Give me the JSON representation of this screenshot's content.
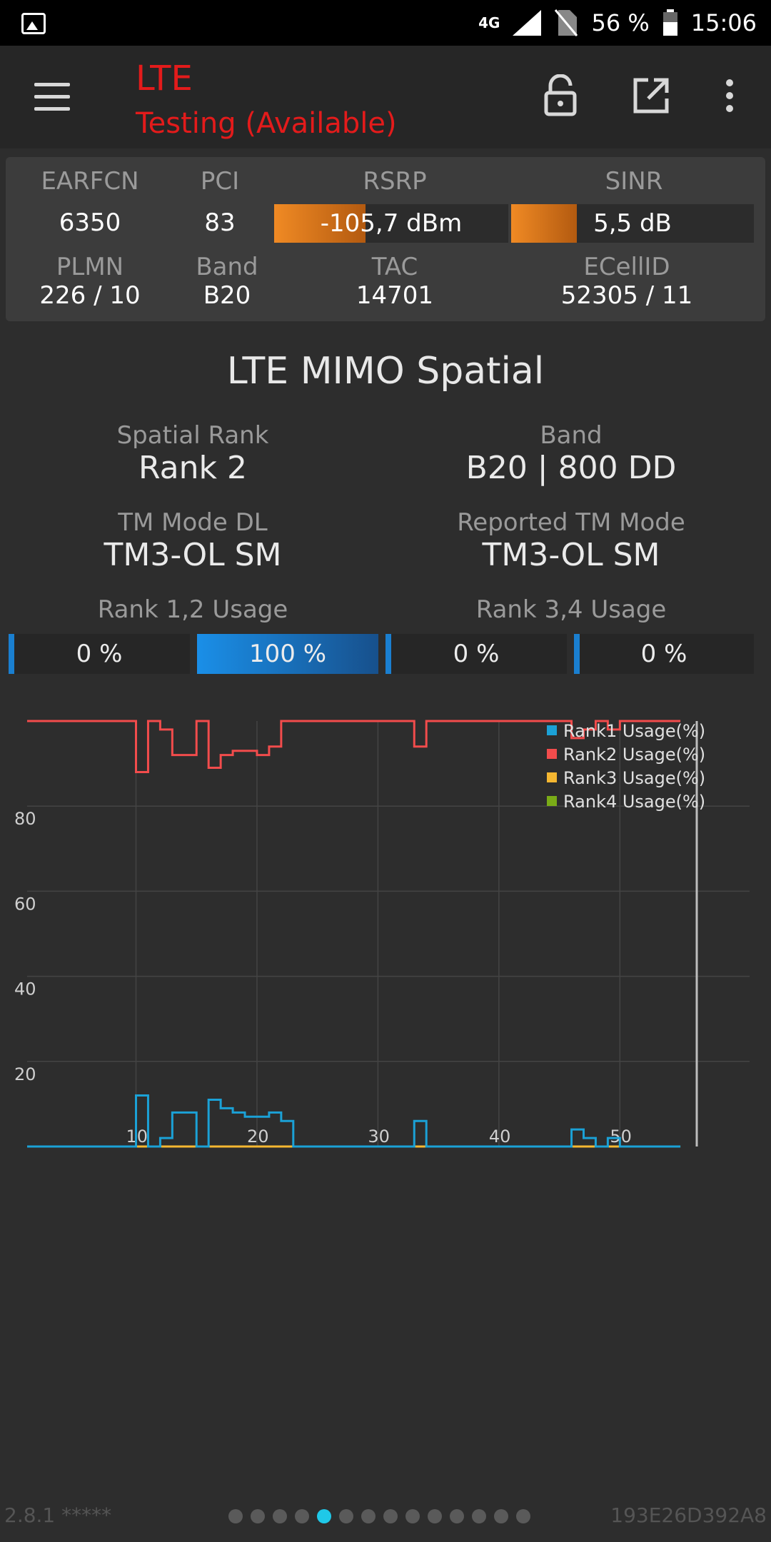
{
  "status_bar": {
    "network": "4G",
    "battery": "56 %",
    "time": "15:06"
  },
  "toolbar": {
    "title": "LTE",
    "subtitle": "Testing (Available)"
  },
  "info": {
    "row1": {
      "earfcn": {
        "label": "EARFCN",
        "value": "6350"
      },
      "pci": {
        "label": "PCI",
        "value": "83"
      },
      "rsrp": {
        "label": "RSRP",
        "value": "-105,7 dBm",
        "level": 0.39
      },
      "sinr": {
        "label": "SINR",
        "value": "5,5 dB",
        "level": 0.27
      }
    },
    "row2": {
      "plmn": {
        "label": "PLMN",
        "value": "226 / 10"
      },
      "band": {
        "label": "Band",
        "value": "B20"
      },
      "tac": {
        "label": "TAC",
        "value": "14701"
      },
      "ecellid": {
        "label": "ECellID",
        "value": "52305 / 11"
      }
    }
  },
  "section_title": "LTE MIMO Spatial",
  "stats": {
    "spatial_rank": {
      "label": "Spatial Rank",
      "value": "Rank 2"
    },
    "band": {
      "label": "Band",
      "value": "B20 | 800 DD"
    },
    "tm_mode_dl": {
      "label": "TM Mode DL",
      "value": "TM3-OL SM"
    },
    "reported_tm": {
      "label": "Reported TM Mode",
      "value": "TM3-OL SM"
    },
    "rank12_label": "Rank 1,2 Usage",
    "rank34_label": "Rank 3,4 Usage"
  },
  "usage": [
    {
      "text": "0 %",
      "value": 0
    },
    {
      "text": "100 %",
      "value": 100
    },
    {
      "text": "0 %",
      "value": 0
    },
    {
      "text": "0 %",
      "value": 0
    }
  ],
  "chart_data": {
    "type": "line",
    "step": true,
    "ylim": [
      0,
      100
    ],
    "xlim": [
      1,
      56
    ],
    "y_ticks": [
      20,
      40,
      60,
      80
    ],
    "x_ticks": [
      10,
      20,
      30,
      40,
      50
    ],
    "grid": true,
    "legend_position": "top-right",
    "series": [
      {
        "name": "Rank1 Usage(%)",
        "color": "#1ba1d6",
        "points": [
          [
            1,
            0
          ],
          [
            10,
            12
          ],
          [
            11,
            0
          ],
          [
            12,
            2
          ],
          [
            13,
            8
          ],
          [
            15,
            0
          ],
          [
            16,
            11
          ],
          [
            17,
            9
          ],
          [
            18,
            8
          ],
          [
            19,
            7
          ],
          [
            21,
            8
          ],
          [
            22,
            6
          ],
          [
            23,
            0
          ],
          [
            33,
            6
          ],
          [
            34,
            0
          ],
          [
            46,
            4
          ],
          [
            47,
            2
          ],
          [
            48,
            0
          ],
          [
            49,
            2
          ],
          [
            50,
            0
          ],
          [
            55,
            0
          ]
        ]
      },
      {
        "name": "Rank2 Usage(%)",
        "color": "#f24c4c",
        "points": [
          [
            1,
            100
          ],
          [
            10,
            88
          ],
          [
            11,
            100
          ],
          [
            12,
            98
          ],
          [
            13,
            92
          ],
          [
            15,
            100
          ],
          [
            16,
            89
          ],
          [
            17,
            92
          ],
          [
            18,
            93
          ],
          [
            20,
            92
          ],
          [
            21,
            94
          ],
          [
            22,
            100
          ],
          [
            33,
            94
          ],
          [
            34,
            100
          ],
          [
            46,
            96
          ],
          [
            47,
            98
          ],
          [
            48,
            100
          ],
          [
            49,
            98
          ],
          [
            50,
            100
          ],
          [
            55,
            100
          ]
        ]
      },
      {
        "name": "Rank3 Usage(%)",
        "color": "#f5b731",
        "points": [
          [
            1,
            0
          ],
          [
            55,
            0
          ]
        ]
      },
      {
        "name": "Rank4 Usage(%)",
        "color": "#7aab17",
        "points": [
          [
            1,
            0
          ],
          [
            55,
            0
          ]
        ]
      }
    ]
  },
  "footer": {
    "version": "2.8.1 *****",
    "device_id": "193E26D392A8",
    "pages": 14,
    "active_page": 5
  }
}
